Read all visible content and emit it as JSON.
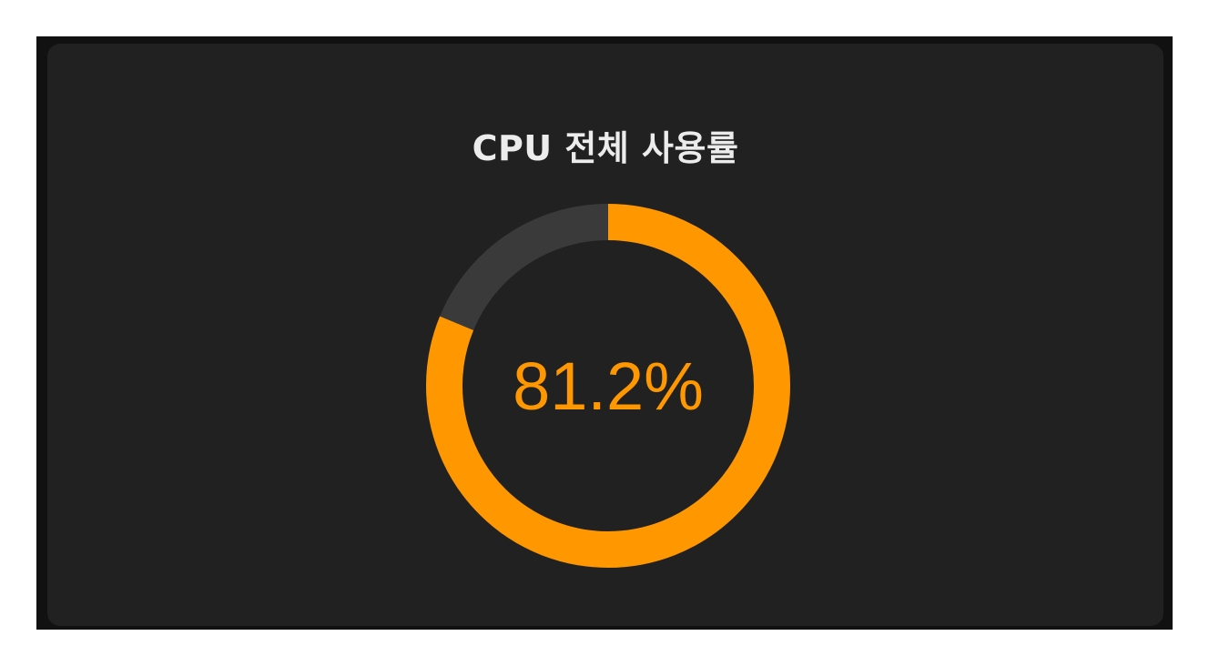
{
  "panel": {
    "title": "CPU 전체 사용률"
  },
  "gauge": {
    "value_percent": 81.2,
    "value_label": "81.2%",
    "color_fill": "#ff9800",
    "color_track": "#3a3a3a",
    "color_text": "#ff9800"
  }
}
